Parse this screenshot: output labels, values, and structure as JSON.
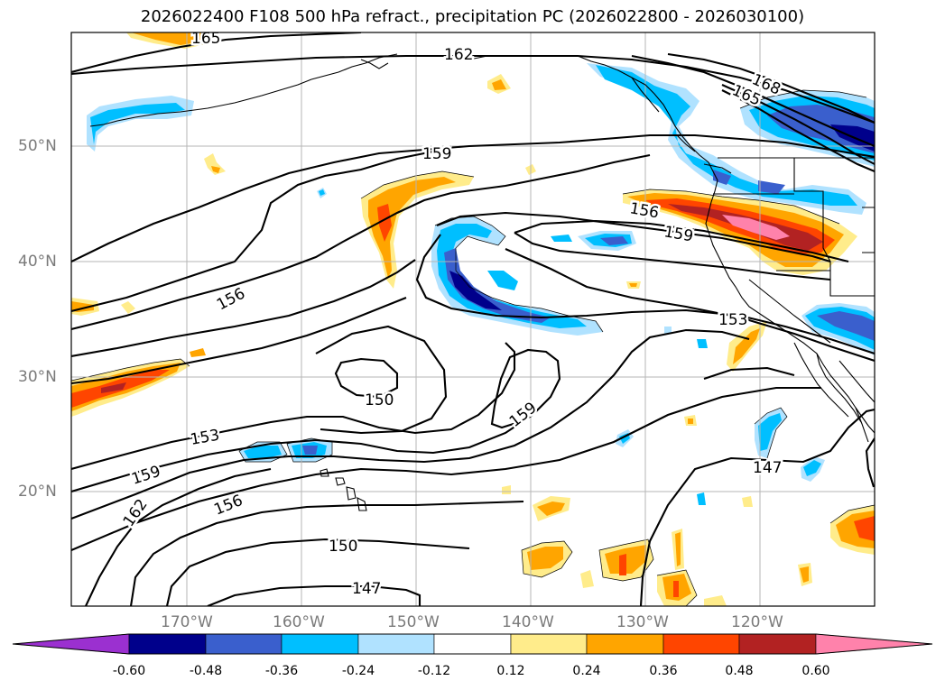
{
  "title": "2026022400 F108 500 hPa refract., precipitation PC (2026022800 - 2026030100)",
  "lat_labels": [
    "50°N",
    "40°N",
    "30°N",
    "20°N"
  ],
  "lon_labels": [
    "170°W",
    "160°W",
    "150°W",
    "140°W",
    "130°W",
    "120°W"
  ],
  "contour_labels": [
    "165",
    "162",
    "168",
    "165",
    "159",
    "156",
    "159",
    "156",
    "153",
    "150",
    "159",
    "153",
    "159",
    "162",
    "156",
    "150",
    "147",
    "147"
  ],
  "colorbar": {
    "ticks": [
      "-0.60",
      "-0.48",
      "-0.36",
      "-0.24",
      "-0.12",
      "0.12",
      "0.24",
      "0.36",
      "0.48",
      "0.60"
    ],
    "colors": {
      "lt_m060": "#9b30d0",
      "m060_m048": "#00008b",
      "m048_m036": "#3a5fcd",
      "m036_m024": "#00bfff",
      "m024_m012": "#b0e2ff",
      "m012_012": "#ffffff",
      "p012_024": "#ffec8b",
      "p024_036": "#ffa500",
      "p036_048": "#ff4500",
      "p048_060": "#b22222",
      "gt_060": "#ff82ab"
    }
  }
}
